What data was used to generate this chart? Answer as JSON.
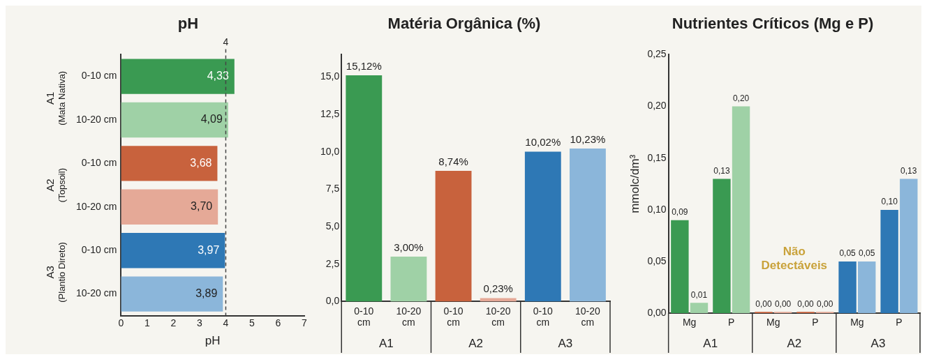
{
  "chart_data": [
    {
      "type": "bar",
      "orientation": "horizontal",
      "title": "pH",
      "xlabel": "pH",
      "categories": [
        "0-10 cm",
        "10-20 cm",
        "0-10 cm",
        "10-20 cm",
        "0-10 cm",
        "10-20 cm"
      ],
      "values": [
        4.33,
        4.09,
        3.68,
        3.7,
        3.97,
        3.89
      ],
      "colors": [
        "#3a9a52",
        "#9fd1a6",
        "#c8623d",
        "#e5a997",
        "#2e78b5",
        "#8bb6da"
      ],
      "value_labels": [
        "4,33",
        "4,09",
        "3,68",
        "3,70",
        "3,97",
        "3,89"
      ],
      "xlim": [
        0,
        7
      ],
      "xticks": [
        0,
        1,
        2,
        3,
        4,
        5,
        6,
        7
      ],
      "ref_lines": [
        {
          "axis": "x",
          "value": 4,
          "label": "4",
          "line_style": "dashed"
        }
      ],
      "annotations": [
        "A1 (Mata Nativa)",
        "A2 (Topsoil)",
        "A3 (Plantio Direto)"
      ],
      "grid": false,
      "legend": false
    },
    {
      "type": "bar",
      "title": "Matéria Orgânica (%)",
      "categories": [
        "0-10 cm",
        "10-20 cm",
        "0-10 cm",
        "10-20 cm",
        "0-10 cm",
        "10-20 cm"
      ],
      "values": [
        15.12,
        3.0,
        8.74,
        0.23,
        10.02,
        10.23
      ],
      "colors": [
        "#3a9a52",
        "#9fd1a6",
        "#c8623d",
        "#e5a997",
        "#2e78b5",
        "#8bb6da"
      ],
      "value_labels": [
        "15,12%",
        "3,00%",
        "8,74%",
        "0,23%",
        "10,02%",
        "10,23%"
      ],
      "ylim": [
        0,
        16.5
      ],
      "yticks": [
        {
          "value": 0,
          "label": "0,0"
        },
        {
          "value": 2.5,
          "label": "2,5"
        },
        {
          "value": 5,
          "label": "5,0"
        },
        {
          "value": 7.5,
          "label": "7,5"
        },
        {
          "value": 10,
          "label": "10,0"
        },
        {
          "value": 12.5,
          "label": "12,5"
        },
        {
          "value": 15,
          "label": "15,0"
        }
      ],
      "annotations": [
        "A1",
        "A2",
        "A3"
      ],
      "grid": false,
      "legend": false
    },
    {
      "type": "bar",
      "title": "Nutrientes Críticos (Mg e P)",
      "ylabel": "mmolc/dm³",
      "categories": [
        "Mg",
        "P",
        "Mg",
        "P",
        "Mg",
        "P"
      ],
      "series": [
        {
          "colors": [
            "#3a9a52",
            "#3a9a52",
            "#c8623d",
            "#c8623d",
            "#2e78b5",
            "#2e78b5"
          ],
          "values": [
            0.09,
            0.13,
            0,
            0,
            0.05,
            0.1
          ],
          "value_labels": [
            "0,09",
            "0,13",
            "0,00",
            "0,00",
            "0,05",
            "0,10"
          ]
        },
        {
          "colors": [
            "#9fd1a6",
            "#9fd1a6",
            "#e5a997",
            "#e5a997",
            "#8bb6da",
            "#8bb6da"
          ],
          "values": [
            0.01,
            0.2,
            0,
            0,
            0.05,
            0.13
          ],
          "value_labels": [
            "0,01",
            "0,20",
            "0,00",
            "0,00",
            "0,05",
            "0,13"
          ]
        }
      ],
      "ylim": [
        0,
        0.25
      ],
      "yticks": [
        {
          "value": 0,
          "label": "0,00"
        },
        {
          "value": 0.05,
          "label": "0,05"
        },
        {
          "value": 0.1,
          "label": "0,10"
        },
        {
          "value": 0.15,
          "label": "0,15"
        },
        {
          "value": 0.2,
          "label": "0,20"
        },
        {
          "value": 0.25,
          "label": "0,25"
        }
      ],
      "annotations": [
        "A1",
        "A2",
        "A3",
        "Não Detectáveis"
      ],
      "grid": false,
      "legend": false
    }
  ]
}
